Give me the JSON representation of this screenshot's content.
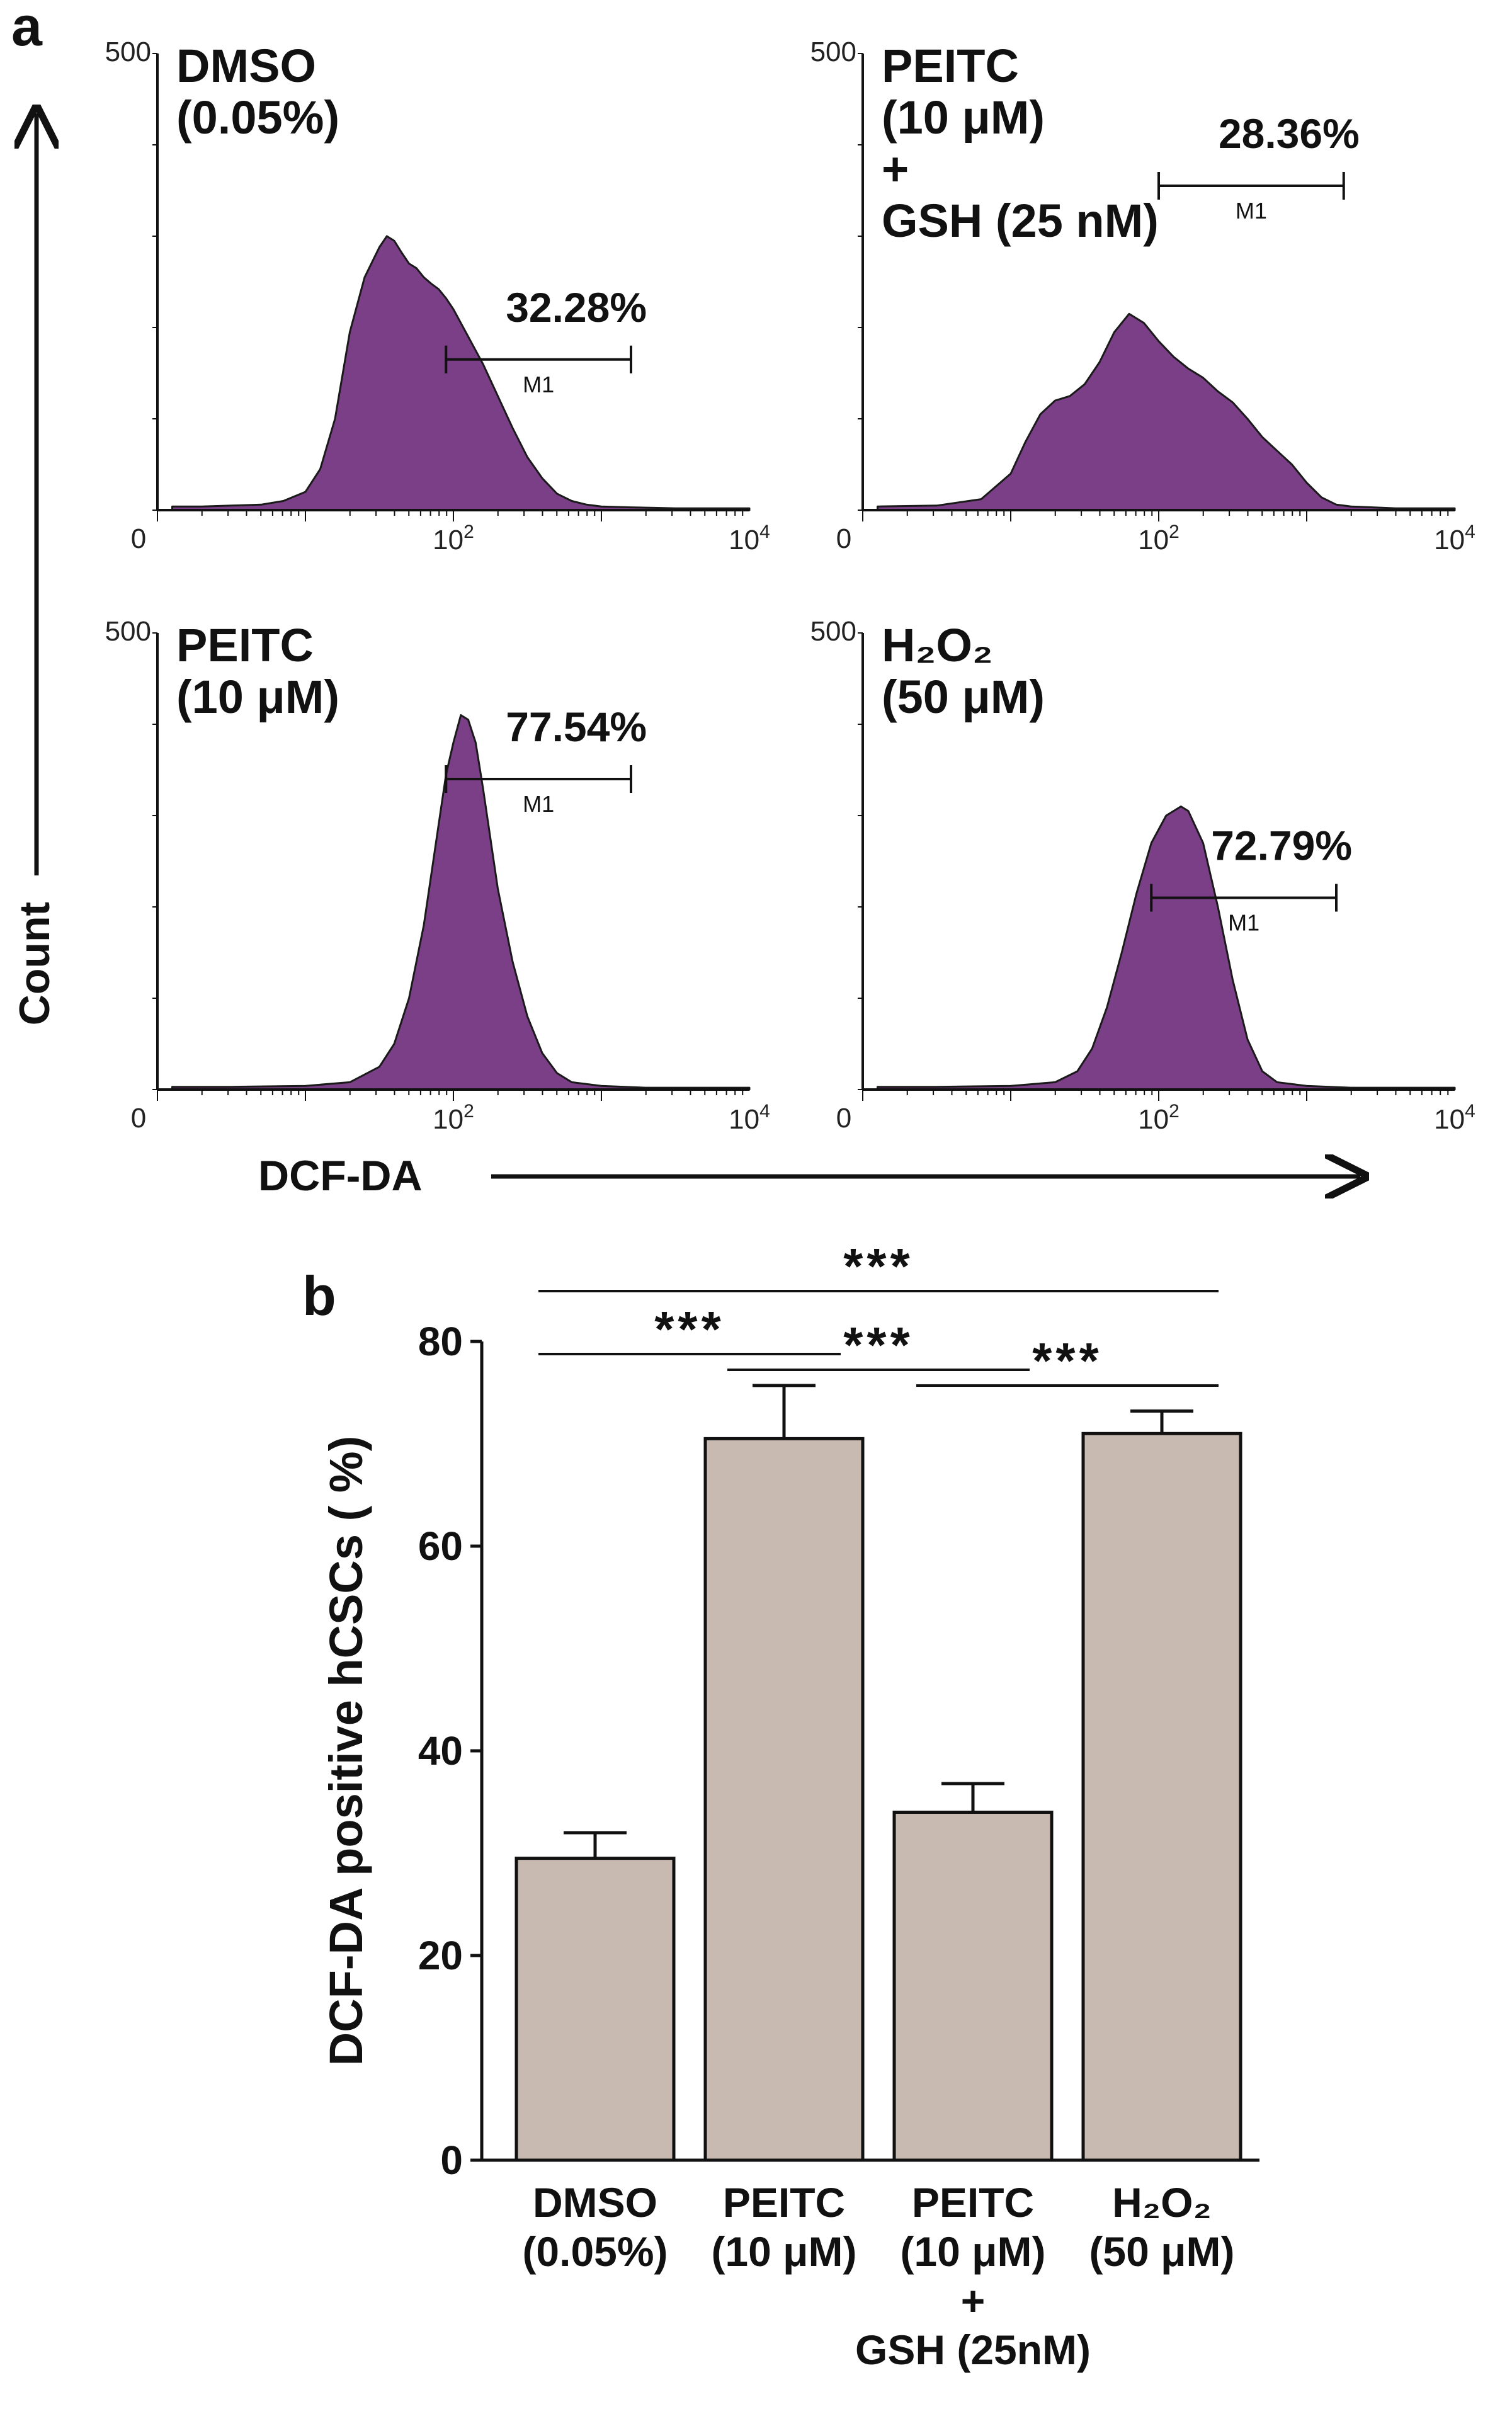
{
  "panel_a_label": "a",
  "panel_b_label": "b",
  "colors": {
    "histogram_fill": "#7a3f86",
    "histogram_edge": "#1a1a1a",
    "bar_fill": "#c8bab0",
    "ink": "#111111"
  },
  "panel_a": {
    "count_label": "Count",
    "dcf_label": "DCF-DA",
    "gate_label": "M1",
    "tick_zero": "0",
    "tick_base": "10",
    "tick_mid_exp": "2",
    "tick_max_exp": "4",
    "y_max_label": "500"
  },
  "chart_data": [
    {
      "type": "area",
      "name": "DMSO histogram",
      "title_lines": [
        "DMSO",
        "(0.05%)"
      ],
      "x": [
        0.1,
        0.3,
        0.5,
        0.7,
        0.85,
        1.0,
        1.1,
        1.2,
        1.3,
        1.4,
        1.5,
        1.55,
        1.6,
        1.65,
        1.7,
        1.75,
        1.8,
        1.85,
        1.9,
        1.95,
        2.0,
        2.05,
        2.1,
        2.2,
        2.3,
        2.4,
        2.5,
        2.6,
        2.7,
        2.8,
        2.9,
        3.0,
        3.2,
        3.5,
        3.8,
        4.0
      ],
      "y": [
        4,
        4,
        5,
        6,
        10,
        20,
        45,
        100,
        195,
        255,
        288,
        300,
        295,
        282,
        270,
        265,
        255,
        248,
        242,
        232,
        220,
        205,
        190,
        160,
        125,
        90,
        58,
        35,
        18,
        10,
        6,
        4,
        3,
        2,
        2,
        2
      ],
      "x_scale": "log (0 to 10^4)",
      "y_range": [
        0,
        500
      ],
      "gate": {
        "name": "M1",
        "percent": "32.28%",
        "start": 1.95,
        "end": 3.2
      }
    },
    {
      "type": "area",
      "name": "PEITC + GSH histogram",
      "title_lines": [
        "PEITC",
        "(10 μM)",
        "+",
        "GSH (25 nM)"
      ],
      "x": [
        0.1,
        0.5,
        0.8,
        1.0,
        1.1,
        1.2,
        1.3,
        1.4,
        1.5,
        1.6,
        1.7,
        1.8,
        1.9,
        2.0,
        2.1,
        2.2,
        2.3,
        2.4,
        2.5,
        2.6,
        2.7,
        2.8,
        2.9,
        3.0,
        3.1,
        3.2,
        3.3,
        3.6,
        4.0
      ],
      "y": [
        4,
        5,
        12,
        40,
        75,
        105,
        120,
        125,
        138,
        162,
        195,
        215,
        205,
        185,
        168,
        155,
        145,
        130,
        118,
        100,
        80,
        65,
        50,
        30,
        14,
        6,
        4,
        2,
        2
      ],
      "x_scale": "log (0 to 10^4)",
      "y_range": [
        0,
        500
      ],
      "gate": {
        "name": "M1",
        "percent": "28.36%",
        "start": 2.0,
        "end": 3.25
      }
    },
    {
      "type": "area",
      "name": "PEITC histogram",
      "title_lines": [
        "PEITC",
        "(10 μM)"
      ],
      "x": [
        0.1,
        0.5,
        1.0,
        1.3,
        1.5,
        1.6,
        1.7,
        1.8,
        1.9,
        1.95,
        2.0,
        2.05,
        2.1,
        2.15,
        2.2,
        2.3,
        2.4,
        2.5,
        2.6,
        2.7,
        2.8,
        3.0,
        3.3,
        4.0
      ],
      "y": [
        3,
        3,
        4,
        8,
        25,
        50,
        100,
        180,
        290,
        345,
        380,
        410,
        405,
        380,
        330,
        220,
        140,
        80,
        40,
        18,
        8,
        4,
        2,
        2
      ],
      "x_scale": "log (0 to 10^4)",
      "y_range": [
        0,
        500
      ],
      "gate": {
        "name": "M1",
        "percent": "77.54%",
        "start": 1.95,
        "end": 3.2
      }
    },
    {
      "type": "area",
      "name": "H2O2 histogram",
      "title_lines": [
        "H₂O₂",
        "(50 μM)"
      ],
      "x": [
        0.1,
        0.5,
        1.0,
        1.3,
        1.45,
        1.55,
        1.65,
        1.75,
        1.85,
        1.95,
        2.05,
        2.15,
        2.2,
        2.3,
        2.4,
        2.5,
        2.6,
        2.7,
        2.8,
        3.0,
        3.3,
        4.0
      ],
      "y": [
        3,
        3,
        4,
        8,
        20,
        45,
        90,
        150,
        215,
        270,
        300,
        310,
        305,
        270,
        200,
        120,
        55,
        20,
        8,
        4,
        2,
        2
      ],
      "x_scale": "log (0 to 10^4)",
      "y_range": [
        0,
        500
      ],
      "gate": {
        "name": "M1",
        "percent": "72.79%",
        "start": 1.95,
        "end": 3.2
      }
    },
    {
      "type": "bar",
      "name": "panel b",
      "title": "",
      "ylabel": "DCF-DA positive hCSCs ( %)",
      "ylim": [
        0,
        80
      ],
      "yticks": [
        "0",
        "20",
        "40",
        "60",
        "80"
      ],
      "categories": [
        [
          "DMSO",
          "(0.05%)"
        ],
        [
          "PEITC",
          "(10 μM)"
        ],
        [
          "PEITC",
          "(10 μM)",
          "+",
          "GSH (25nM)"
        ],
        [
          "H₂O₂",
          "(50 μM)"
        ]
      ],
      "values": [
        29.5,
        70.5,
        34,
        71
      ],
      "errors": [
        2.5,
        5.2,
        2.8,
        2.2
      ],
      "significance": [
        {
          "from": 0,
          "to": 1,
          "label": "***"
        },
        {
          "from": 1,
          "to": 2,
          "label": "***"
        },
        {
          "from": 2,
          "to": 3,
          "label": "***"
        },
        {
          "from": 0,
          "to": 3,
          "label": "***"
        }
      ]
    }
  ]
}
